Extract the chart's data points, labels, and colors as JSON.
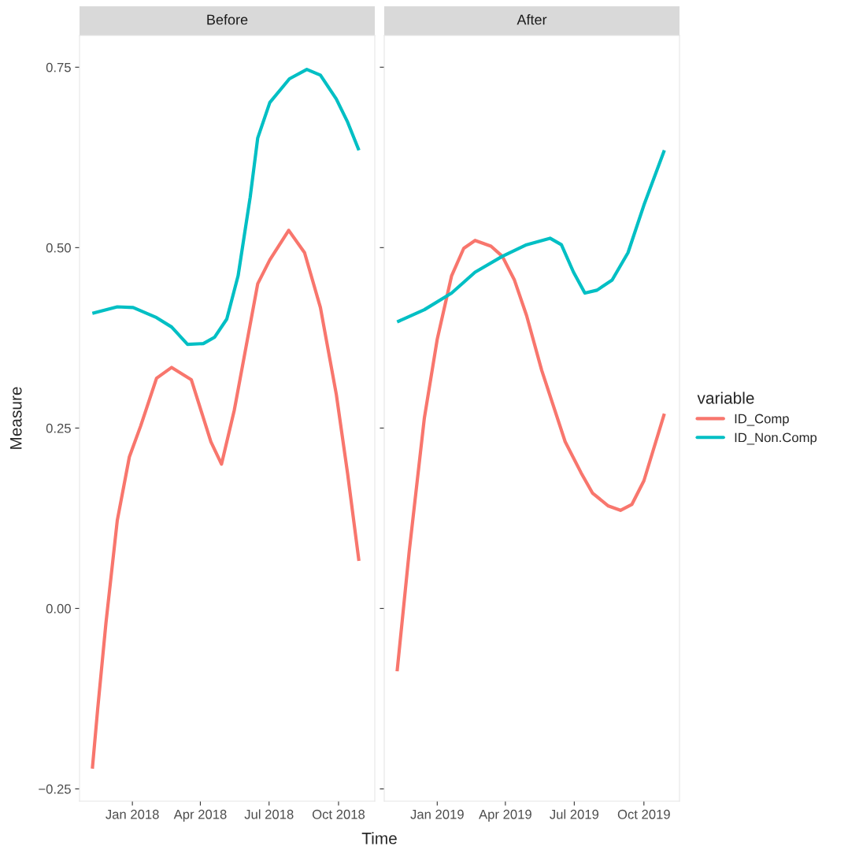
{
  "chart_data": [
    {
      "type": "line",
      "title": "Before",
      "xlabel": "Time",
      "ylabel": "Measure",
      "grid": false,
      "line_style": "solid",
      "marker": "none",
      "xlim": [
        "2017-10-23",
        "2018-11-18"
      ],
      "ylim": [
        -0.267,
        0.794
      ],
      "xticks": [
        {
          "value": "2018-01-01",
          "label": "Jan 2018"
        },
        {
          "value": "2018-04-01",
          "label": "Apr 2018"
        },
        {
          "value": "2018-07-01",
          "label": "Jul 2018"
        },
        {
          "value": "2018-10-01",
          "label": "Oct 2018"
        }
      ],
      "yticks": [
        {
          "value": -0.25,
          "label": "−0.25"
        },
        {
          "value": 0,
          "label": "0.00"
        },
        {
          "value": 0.25,
          "label": "0.25"
        },
        {
          "value": 0.5,
          "label": "0.50"
        },
        {
          "value": 0.75,
          "label": "0.75"
        }
      ],
      "series": [
        {
          "color": "#f8766d",
          "x": [
            "2017-11-09",
            "2017-11-16",
            "2017-11-27",
            "2017-12-12",
            "2017-12-28",
            "2018-01-12",
            "2018-02-02",
            "2018-02-22",
            "2018-03-20",
            "2018-04-15",
            "2018-04-29",
            "2018-05-16",
            "2018-06-16",
            "2018-07-02",
            "2018-07-27",
            "2018-08-17",
            "2018-09-07",
            "2018-09-28",
            "2018-10-13",
            "2018-10-28"
          ],
          "values": [
            -0.222,
            -0.14,
            -0.02,
            0.122,
            0.21,
            0.253,
            0.319,
            0.334,
            0.317,
            0.231,
            0.2,
            0.275,
            0.45,
            0.483,
            0.524,
            0.493,
            0.417,
            0.297,
            0.187,
            0.066
          ]
        },
        {
          "color": "#00bfc4",
          "x": [
            "2017-11-09",
            "2017-12-12",
            "2018-01-02",
            "2018-02-02",
            "2018-02-22",
            "2018-03-15",
            "2018-04-05",
            "2018-04-20",
            "2018-05-06",
            "2018-05-21",
            "2018-06-06",
            "2018-06-16",
            "2018-07-02",
            "2018-07-28",
            "2018-08-20",
            "2018-09-07",
            "2018-09-28",
            "2018-10-13",
            "2018-10-28"
          ],
          "values": [
            0.409,
            0.418,
            0.417,
            0.403,
            0.39,
            0.366,
            0.367,
            0.376,
            0.401,
            0.461,
            0.57,
            0.652,
            0.701,
            0.734,
            0.747,
            0.739,
            0.706,
            0.674,
            0.635
          ]
        }
      ]
    },
    {
      "type": "line",
      "title": "After",
      "legend_title": "variable",
      "legend": "right",
      "grid": false,
      "line_style": "solid",
      "marker": "none",
      "tick_labels": "x",
      "xlim": [
        "2018-10-23",
        "2019-11-17"
      ],
      "ylim": [
        -0.267,
        0.794
      ],
      "xticks": [
        {
          "value": "2019-01-01",
          "label": "Jan 2019"
        },
        {
          "value": "2019-04-01",
          "label": "Apr 2019"
        },
        {
          "value": "2019-07-01",
          "label": "Jul 2019"
        },
        {
          "value": "2019-10-01",
          "label": "Oct 2019"
        }
      ],
      "yticks": [
        -0.25,
        0,
        0.25,
        0.5,
        0.75
      ],
      "series": [
        {
          "name": "ID_Comp",
          "color": "#f8766d",
          "x": [
            "2018-11-09",
            "2018-11-25",
            "2018-12-15",
            "2019-01-01",
            "2019-01-20",
            "2019-02-05",
            "2019-02-20",
            "2019-03-13",
            "2019-03-28",
            "2019-04-13",
            "2019-04-29",
            "2019-05-19",
            "2019-06-19",
            "2019-07-10",
            "2019-07-25",
            "2019-08-15",
            "2019-08-31",
            "2019-09-15",
            "2019-10-01",
            "2019-10-28"
          ],
          "values": [
            -0.087,
            0.079,
            0.264,
            0.373,
            0.461,
            0.499,
            0.51,
            0.502,
            0.488,
            0.455,
            0.406,
            0.33,
            0.231,
            0.188,
            0.16,
            0.142,
            0.136,
            0.144,
            0.177,
            0.27
          ]
        },
        {
          "name": "ID_Non.Comp",
          "color": "#00bfc4",
          "x": [
            "2018-11-09",
            "2018-12-15",
            "2019-01-20",
            "2019-02-20",
            "2019-03-28",
            "2019-04-29",
            "2019-05-30",
            "2019-06-14",
            "2019-06-30",
            "2019-07-15",
            "2019-07-31",
            "2019-08-20",
            "2019-09-10",
            "2019-10-01",
            "2019-10-28"
          ],
          "values": [
            0.397,
            0.414,
            0.437,
            0.466,
            0.488,
            0.504,
            0.513,
            0.504,
            0.466,
            0.437,
            0.441,
            0.455,
            0.493,
            0.559,
            0.635
          ]
        }
      ]
    }
  ]
}
